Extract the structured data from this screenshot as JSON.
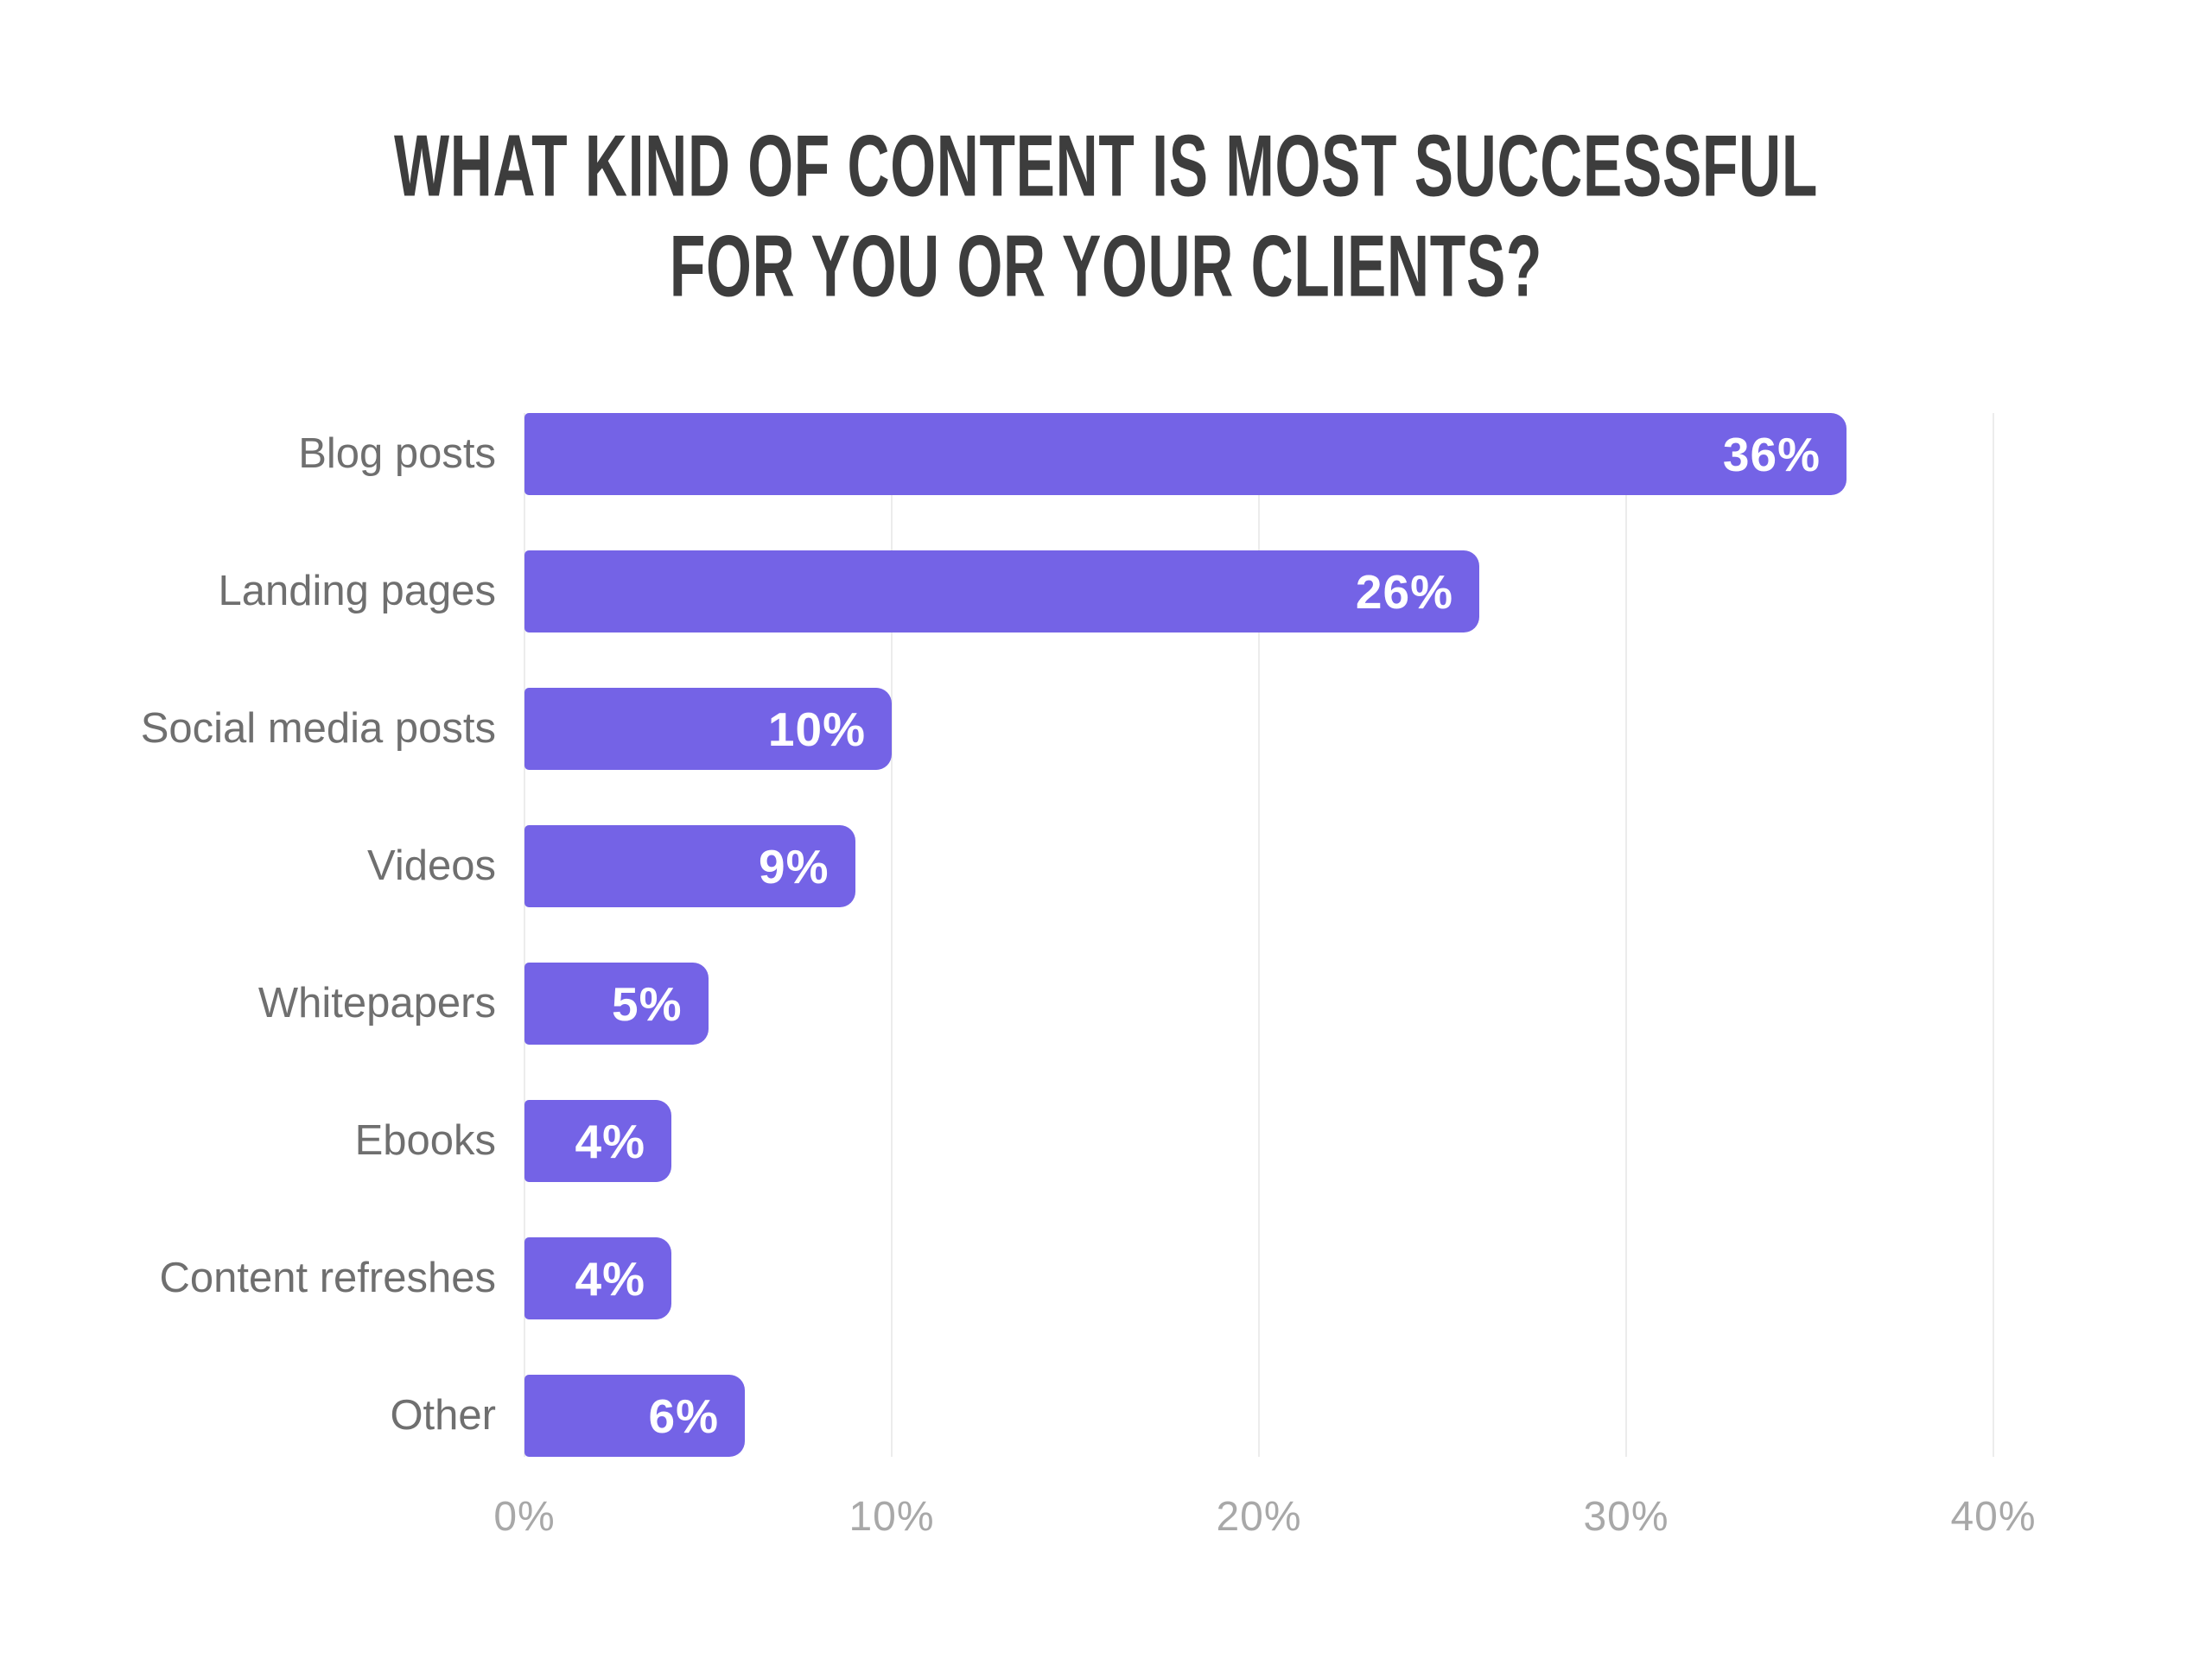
{
  "chart_data": {
    "type": "bar",
    "orientation": "horizontal",
    "title": "WHAT KIND OF CONTENT IS MOST SUCCESSFUL FOR YOU OR YOUR CLIENTS?",
    "title_lines": [
      "WHAT KIND OF CONTENT IS MOST SUCCESSFUL",
      "FOR YOU OR YOUR CLIENTS?"
    ],
    "categories": [
      "Blog posts",
      "Landing pages",
      "Social media posts",
      "Videos",
      "Whitepapers",
      "Ebooks",
      "Content refreshes",
      "Other"
    ],
    "values": [
      36,
      26,
      10,
      9,
      5,
      4,
      4,
      6
    ],
    "value_labels": [
      "36%",
      "26%",
      "10%",
      "9%",
      "5%",
      "4%",
      "4%",
      "6%"
    ],
    "x_ticks": [
      "0%",
      "10%",
      "20%",
      "30%",
      "40%"
    ],
    "x_tick_values": [
      0,
      10,
      20,
      30,
      40
    ],
    "xlim": [
      0,
      40
    ],
    "grid": "vertical-only",
    "legend": "none",
    "colors": {
      "bar": "#7463E6",
      "bar_value_text": "#FFFFFF",
      "title_text": "#3D3D3D",
      "category_label_text": "#6F6F6F",
      "axis_tick_text": "#A8A8A8",
      "gridline": "#ECECEC",
      "background": "#FFFFFF"
    }
  }
}
